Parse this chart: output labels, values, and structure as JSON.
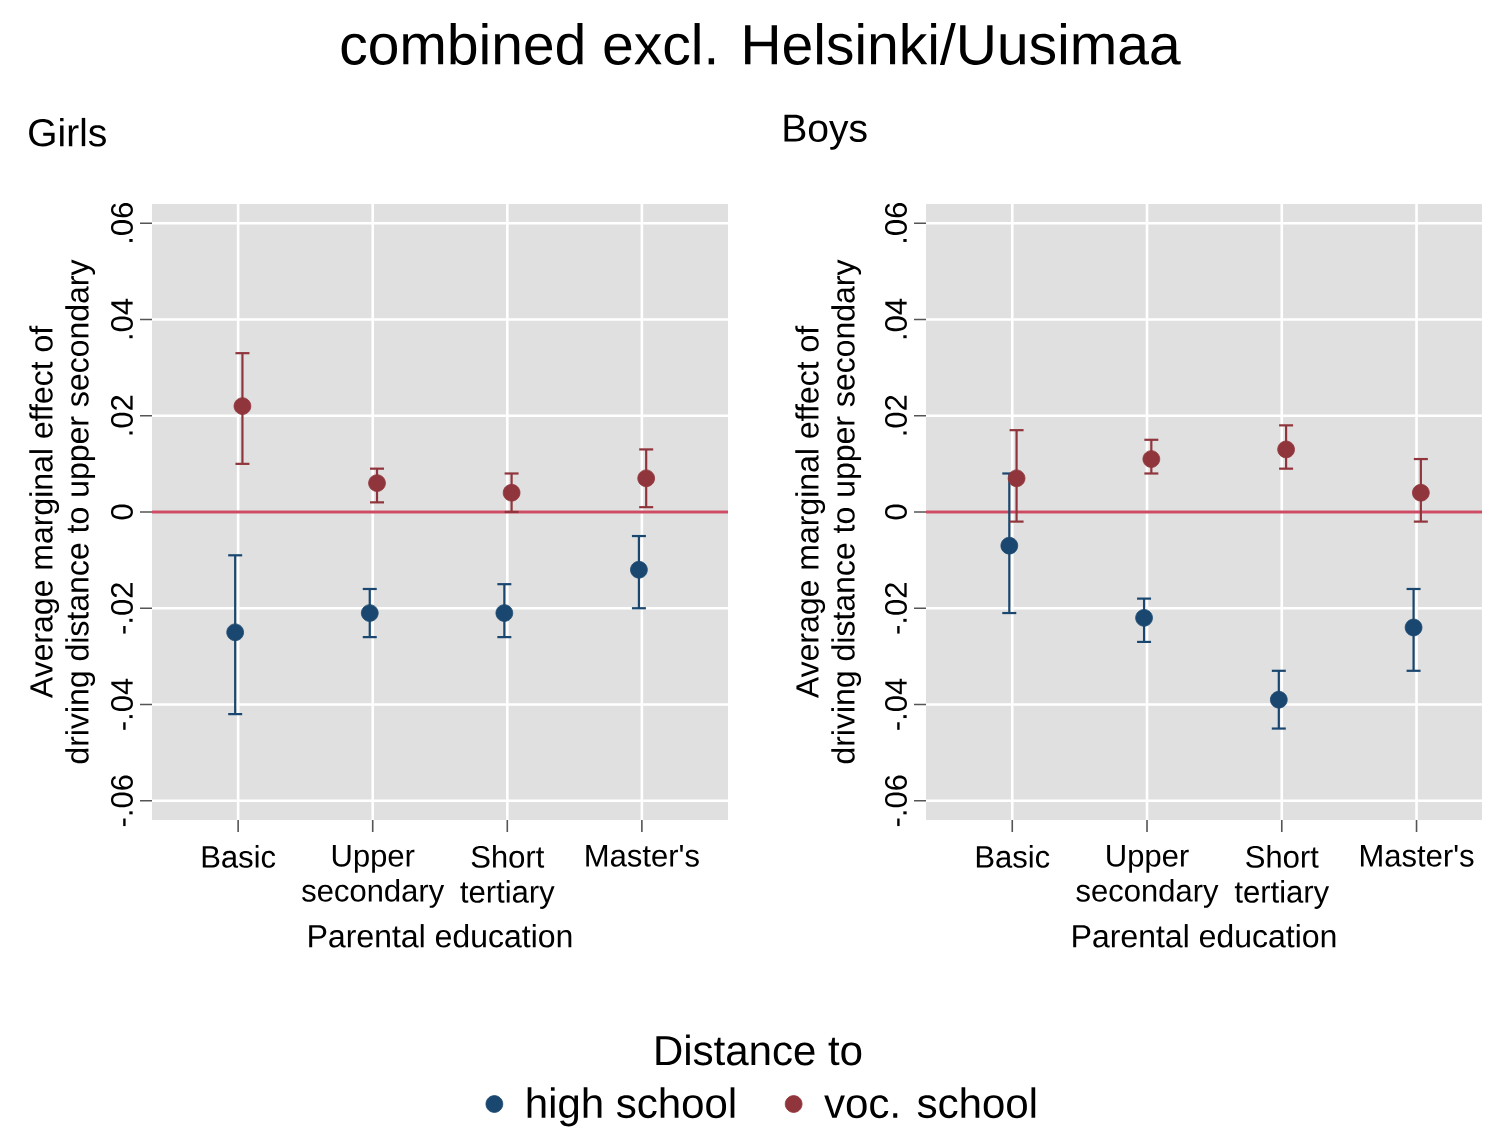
{
  "chart_data": [
    {
      "type": "scatter",
      "title": "Girls",
      "annotations": [
        "combined excl. Helsinki/Uusimaa"
      ],
      "xlabel": "Parental education",
      "ylabel": "Average marginal effect of driving distance to upper secondary",
      "categories": [
        "Basic",
        "Upper secondary",
        "Short tertiary",
        "Master's"
      ],
      "series": [
        {
          "name": "high school",
          "color": "#1a476f",
          "values": [
            -0.025,
            -0.021,
            -0.021,
            -0.012
          ],
          "errors": [
            [
              -0.042,
              -0.009
            ],
            [
              -0.026,
              -0.016
            ],
            [
              -0.026,
              -0.015
            ],
            [
              -0.02,
              -0.005
            ]
          ]
        },
        {
          "name": "voc. school",
          "color": "#90353b",
          "values": [
            0.022,
            0.006,
            0.004,
            0.007
          ],
          "errors": [
            [
              0.01,
              0.033
            ],
            [
              0.002,
              0.009
            ],
            [
              0.0,
              0.008
            ],
            [
              0.001,
              0.013
            ]
          ]
        }
      ],
      "ylim": [
        -0.064,
        0.064
      ],
      "yticks": [
        {
          "value": -0.06,
          "label": "-.06"
        },
        {
          "value": -0.04,
          "label": "-.04"
        },
        {
          "value": -0.02,
          "label": "-.02"
        },
        0,
        {
          "value": 0.02,
          "label": ".02"
        },
        {
          "value": 0.04,
          "label": ".04"
        },
        {
          "value": 0.06,
          "label": ".06"
        }
      ],
      "ref_lines": [
        {
          "axis": "y",
          "value": 0,
          "color": "#cc4c64"
        }
      ],
      "grid": true,
      "marker": "circle",
      "legend": "bottom",
      "legend_title": "Distance to"
    },
    {
      "type": "scatter",
      "title": "Boys",
      "xlabel": "Parental education",
      "ylabel": "Average marginal effect of driving distance to upper secondary",
      "categories": [
        "Basic",
        "Upper secondary",
        "Short tertiary",
        "Master's"
      ],
      "series": [
        {
          "color": "#1a476f",
          "values": [
            -0.007,
            -0.022,
            -0.039,
            -0.024
          ],
          "errors": [
            [
              -0.021,
              0.008
            ],
            [
              -0.027,
              -0.018
            ],
            [
              -0.045,
              -0.033
            ],
            [
              -0.033,
              -0.016
            ]
          ]
        },
        {
          "color": "#90353b",
          "values": [
            0.007,
            0.011,
            0.013,
            0.004
          ],
          "errors": [
            [
              -0.002,
              0.017
            ],
            [
              0.008,
              0.015
            ],
            [
              0.009,
              0.018
            ],
            [
              -0.002,
              0.011
            ]
          ]
        }
      ],
      "ylim": [
        -0.064,
        0.064
      ],
      "yticks": [
        {
          "value": -0.06,
          "label": "-.06"
        },
        {
          "value": -0.04,
          "label": "-.04"
        },
        {
          "value": -0.02,
          "label": "-.02"
        },
        0,
        {
          "value": 0.02,
          "label": ".02"
        },
        {
          "value": 0.04,
          "label": ".04"
        },
        {
          "value": 0.06,
          "label": ".06"
        }
      ],
      "ref_lines": [
        {
          "axis": "y",
          "value": 0,
          "color": "#cc4c64"
        }
      ],
      "grid": true,
      "marker": "circle"
    }
  ]
}
